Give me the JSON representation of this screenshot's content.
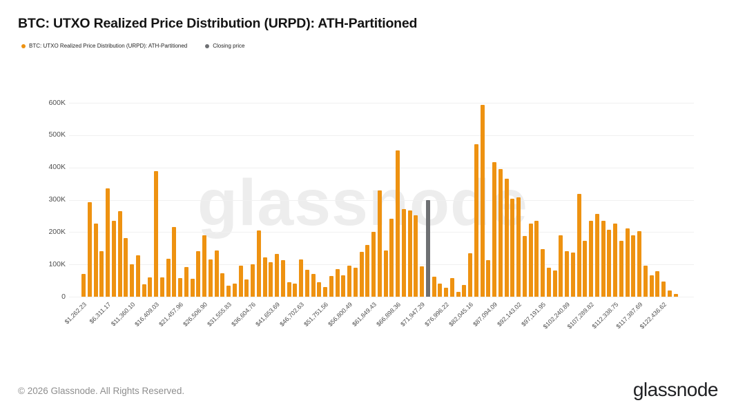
{
  "title": "BTC: UTXO Realized Price Distribution (URPD): ATH-Partitioned",
  "legend": [
    {
      "label": "BTC: UTXO Realized Price Distribution (URPD): ATH-Partitioned",
      "color": "#EE9211"
    },
    {
      "label": "Closing price",
      "color": "#6E7073"
    }
  ],
  "watermark": "glassnode",
  "footer": {
    "copyright": "© 2026 Glassnode. All Rights Reserved.",
    "logo_text": "glassnode"
  },
  "colors": {
    "bar": "#EE9211",
    "closing_price_bar": "#6E7073",
    "grid": "#F0F0F0",
    "axis_text": "#4D4D4D"
  },
  "chart_data": {
    "type": "bar",
    "title": "BTC: UTXO Realized Price Distribution (URPD): ATH-Partitioned",
    "xlabel": "",
    "ylabel": "",
    "grid": "horizontal",
    "legend_position": "top-left",
    "ylim": [
      0,
      620000
    ],
    "y_tick_values": [
      0,
      100000,
      200000,
      300000,
      400000,
      500000,
      600000
    ],
    "y_tick_labels": [
      "0",
      "100K",
      "200K",
      "300K",
      "400K",
      "500K",
      "600K"
    ],
    "x_tick_step": 4,
    "x_tick_labels": [
      "$1,262.23",
      "$6,311.17",
      "$11,360.10",
      "$16,409.03",
      "$21,457.96",
      "$26,506.90",
      "$31,555.83",
      "$36,604.76",
      "$41,653.69",
      "$46,702.63",
      "$51,751.56",
      "$56,800.49",
      "$61,849.43",
      "$66,898.36",
      "$71,947.29",
      "$76,996.22",
      "$82,045.16",
      "$87,094.09",
      "$92,143.02",
      "$97,191.95",
      "$102,240.89",
      "$107,289.82",
      "$112,338.75",
      "$117,387.69",
      "$122,436.62"
    ],
    "series": [
      {
        "name": "BTC: UTXO Realized Price Distribution (URPD): ATH-Partitioned",
        "unit": "BTC",
        "values": [
          70000,
          293000,
          227000,
          142000,
          335000,
          234000,
          265000,
          182000,
          101000,
          129000,
          39000,
          60000,
          388000,
          60000,
          117000,
          216000,
          58000,
          92000,
          55000,
          142000,
          189000,
          115000,
          143000,
          72000,
          35000,
          40000,
          96000,
          53000,
          101000,
          204000,
          122000,
          106000,
          133000,
          113000,
          44000,
          40000,
          115000,
          83000,
          71000,
          44000,
          30000,
          64000,
          85000,
          67000,
          97000,
          90000,
          138000,
          161000,
          200000,
          328000,
          143000,
          241000,
          452000,
          271000,
          266000,
          252000,
          94000,
          null,
          62000,
          40000,
          28000,
          57000,
          14000,
          37000,
          135000,
          472000,
          594000,
          113000,
          416000,
          396000,
          365000,
          303000,
          308000,
          188000,
          227000,
          234000,
          147000,
          89000,
          81000,
          191000,
          140000,
          136000,
          319000,
          174000,
          234000,
          257000,
          234000,
          207000,
          226000,
          172000,
          211000,
          191000,
          202000,
          97000,
          67000,
          78000,
          46000,
          20000,
          8000
        ]
      },
      {
        "name": "Closing price",
        "bar_index": 57,
        "value": 300000
      }
    ]
  }
}
